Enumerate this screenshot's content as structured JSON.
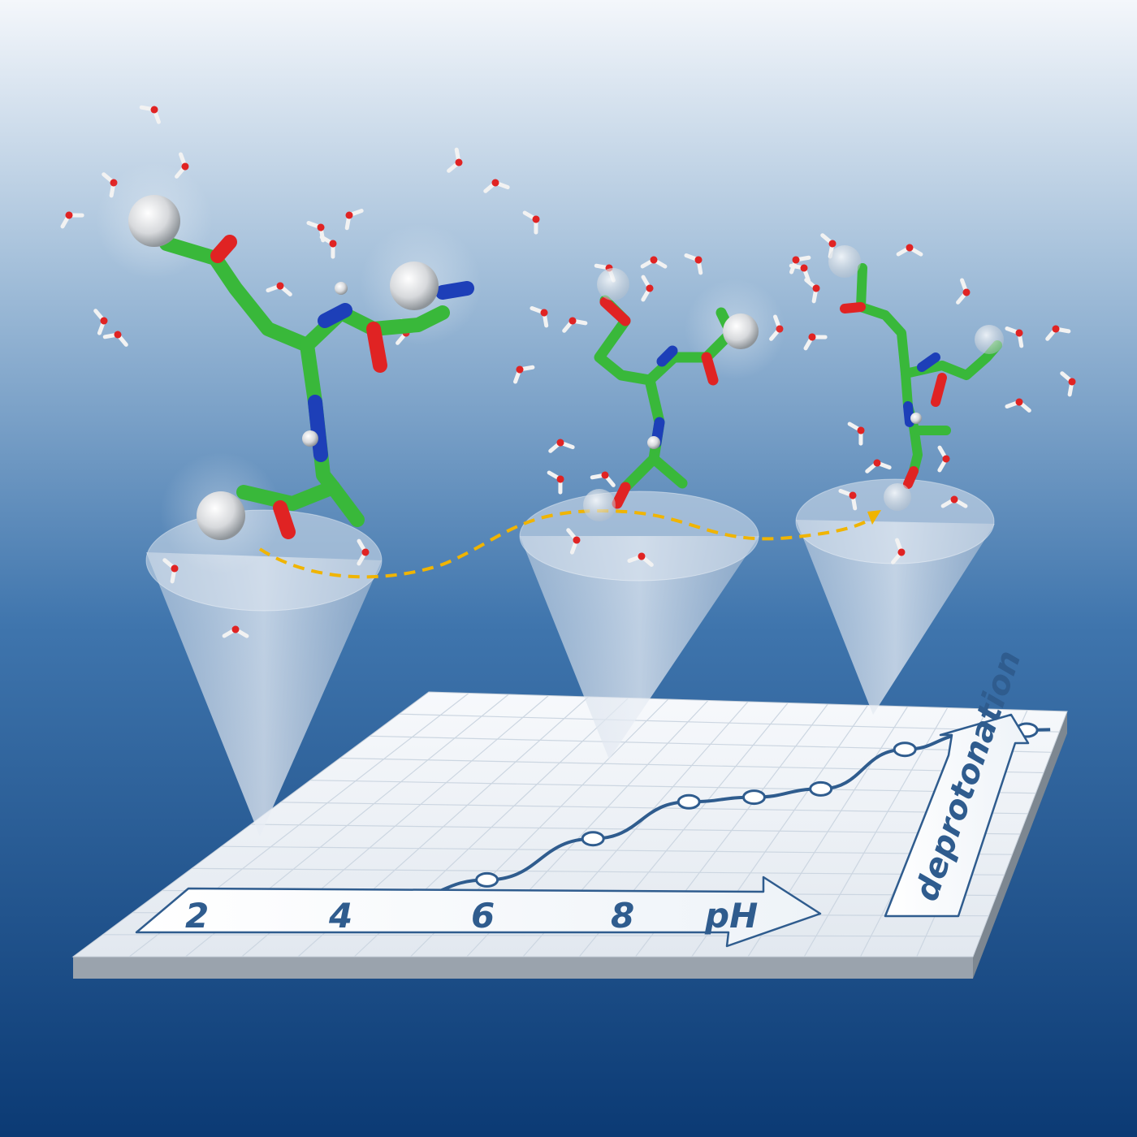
{
  "chart_data": {
    "type": "line",
    "x_axis": {
      "label": "pH",
      "tick_labels": [
        "2",
        "4",
        "6",
        "8"
      ]
    },
    "y_axis": {
      "label": "deprotonation"
    },
    "series": [
      {
        "values": [
          0.0,
          0.05,
          0.16,
          0.38,
          0.58,
          0.61,
          0.66,
          0.88,
          0.97,
          1.0
        ]
      }
    ],
    "grid": true
  },
  "colors": {
    "background_top": "#f2f6fb",
    "background_bottom": "#0b3a74",
    "curve": "#2f5c8e",
    "carbon": "#39b83a",
    "oxygen": "#e02323",
    "nitrogen": "#1d3fb8",
    "hydrogen": "#f2f2f2",
    "path_arrow": "#f0b400"
  },
  "molecules": [
    {
      "stage": "protonated"
    },
    {
      "stage": "intermediate"
    },
    {
      "stage": "deprotonated"
    }
  ]
}
